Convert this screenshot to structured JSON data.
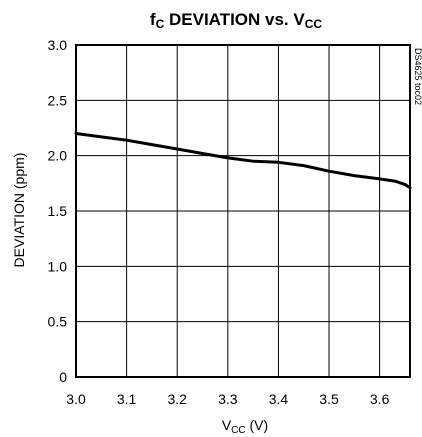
{
  "chart_data": {
    "type": "line",
    "title": {
      "prefix": "f",
      "prefix_sub": "C",
      "middle": " DEVIATION vs. V",
      "suffix_sub": "CC"
    },
    "xlabel": {
      "main": "V",
      "sub": "CC",
      "unit": " (V)"
    },
    "ylabel": "DEVIATION (ppm)",
    "figure_code": "DS4625 toc02",
    "xlim": [
      3.0,
      3.66
    ],
    "ylim": [
      0,
      3.0
    ],
    "x_ticks": [
      3.0,
      3.1,
      3.2,
      3.3,
      3.4,
      3.5,
      3.6
    ],
    "x_tick_labels": [
      "3.0",
      "3.1",
      "3.2",
      "3.3",
      "3.4",
      "3.5",
      "3.6"
    ],
    "y_ticks": [
      0,
      0.5,
      1.0,
      1.5,
      2.0,
      2.5,
      3.0
    ],
    "y_tick_labels": [
      "0",
      "0.5",
      "1.0",
      "1.5",
      "2.0",
      "2.5",
      "3.0"
    ],
    "grid": true,
    "legend": "none",
    "series": [
      {
        "x": [
          3.0,
          3.05,
          3.1,
          3.15,
          3.2,
          3.25,
          3.3,
          3.35,
          3.4,
          3.45,
          3.5,
          3.55,
          3.6,
          3.63,
          3.65,
          3.66
        ],
        "y": [
          2.2,
          2.17,
          2.14,
          2.1,
          2.06,
          2.02,
          1.98,
          1.95,
          1.94,
          1.91,
          1.86,
          1.82,
          1.79,
          1.77,
          1.74,
          1.71
        ]
      }
    ]
  }
}
